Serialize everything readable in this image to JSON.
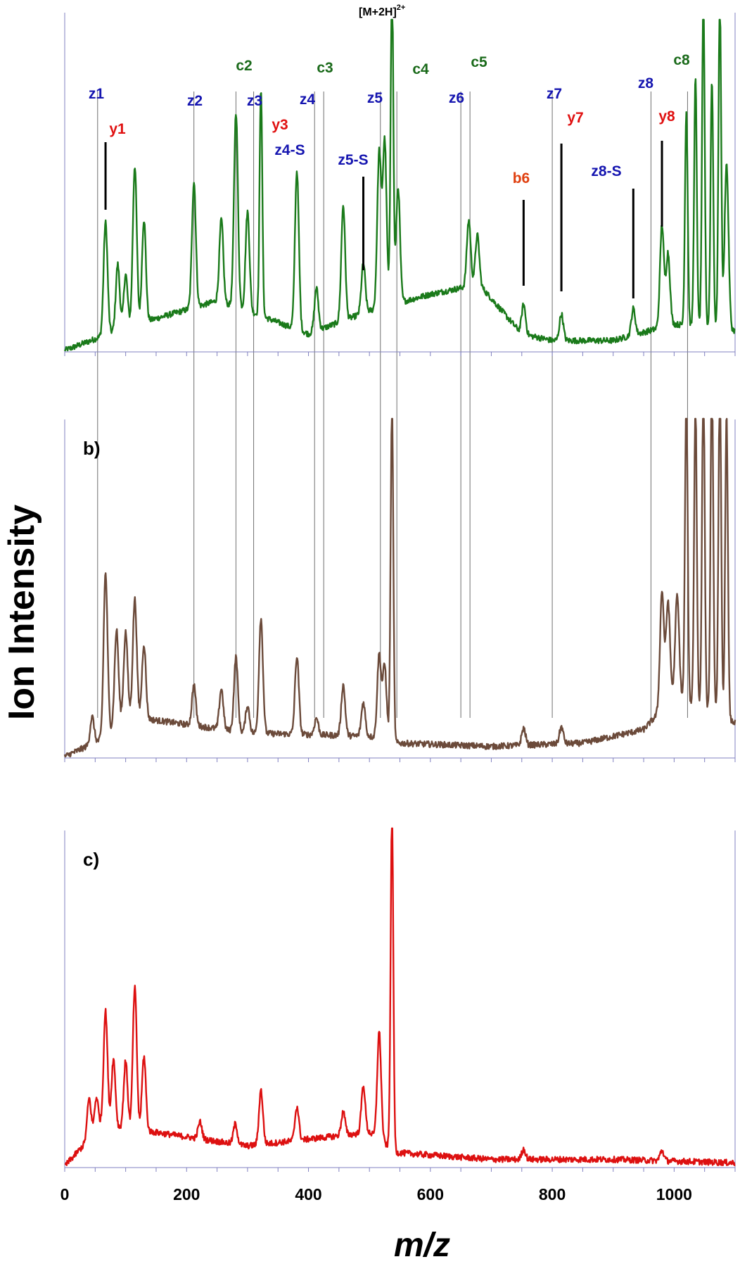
{
  "colors": {
    "panel_a": "#1a7a1a",
    "panel_b": "#6b4a3a",
    "panel_c": "#dd1010",
    "c_ion": "#1a6a1a",
    "z_ion": "#1515b0",
    "y_ion": "#e01010",
    "b_ion": "#e04010",
    "axis": "#8080c0"
  },
  "chart_data": {
    "type": "line",
    "x_axis": {
      "label": "m/z",
      "range": [
        0,
        1100
      ],
      "tick_labels": [
        "0",
        "200",
        "400",
        "600",
        "800",
        "1000"
      ],
      "tick_values": [
        0,
        200,
        400,
        600,
        800,
        1000
      ]
    },
    "y_axis": {
      "label": "Ion Intensity"
    },
    "precursor": {
      "label": "[M+2H]",
      "charge": "2+",
      "mz": 537
    },
    "panels": [
      {
        "id": "a",
        "letter": "",
        "color_key": "panel_a",
        "baseline": [
          [
            0,
            0.0
          ],
          [
            100,
            0.07
          ],
          [
            250,
            0.15
          ],
          [
            300,
            0.12
          ],
          [
            400,
            0.05
          ],
          [
            500,
            0.12
          ],
          [
            600,
            0.17
          ],
          [
            680,
            0.2
          ],
          [
            750,
            0.05
          ],
          [
            800,
            0.03
          ],
          [
            900,
            0.03
          ],
          [
            1000,
            0.08
          ],
          [
            1100,
            0.06
          ]
        ],
        "peaks": [
          [
            67,
            0.34
          ],
          [
            87,
            0.2
          ],
          [
            100,
            0.16
          ],
          [
            115,
            0.48
          ],
          [
            130,
            0.31
          ],
          [
            212,
            0.38
          ],
          [
            257,
            0.25
          ],
          [
            281,
            0.59
          ],
          [
            300,
            0.3
          ],
          [
            322,
            0.69
          ],
          [
            381,
            0.48
          ],
          [
            413,
            0.13
          ],
          [
            457,
            0.35
          ],
          [
            490,
            0.15
          ],
          [
            516,
            0.47
          ],
          [
            525,
            0.5
          ],
          [
            537,
            1.0
          ],
          [
            547,
            0.35
          ],
          [
            663,
            0.2
          ],
          [
            677,
            0.15
          ],
          [
            753,
            0.09
          ],
          [
            815,
            0.08
          ],
          [
            933,
            0.08
          ],
          [
            980,
            0.31
          ],
          [
            990,
            0.22
          ],
          [
            1020,
            0.65
          ],
          [
            1035,
            0.75
          ],
          [
            1048,
            1.0
          ],
          [
            1062,
            0.75
          ],
          [
            1075,
            1.0
          ],
          [
            1086,
            0.5
          ]
        ]
      },
      {
        "id": "b",
        "letter": "b)",
        "color_key": "panel_b",
        "baseline": [
          [
            0,
            0.0
          ],
          [
            60,
            0.05
          ],
          [
            100,
            0.12
          ],
          [
            300,
            0.07
          ],
          [
            500,
            0.06
          ],
          [
            545,
            0.04
          ],
          [
            700,
            0.03
          ],
          [
            850,
            0.04
          ],
          [
            950,
            0.08
          ],
          [
            1000,
            0.18
          ],
          [
            1100,
            0.1
          ]
        ],
        "peaks": [
          [
            45,
            0.08
          ],
          [
            67,
            0.48
          ],
          [
            85,
            0.28
          ],
          [
            100,
            0.25
          ],
          [
            115,
            0.35
          ],
          [
            130,
            0.22
          ],
          [
            212,
            0.12
          ],
          [
            257,
            0.12
          ],
          [
            281,
            0.22
          ],
          [
            300,
            0.08
          ],
          [
            322,
            0.34
          ],
          [
            381,
            0.23
          ],
          [
            413,
            0.05
          ],
          [
            457,
            0.15
          ],
          [
            490,
            0.1
          ],
          [
            516,
            0.25
          ],
          [
            525,
            0.22
          ],
          [
            537,
            1.0
          ],
          [
            753,
            0.05
          ],
          [
            815,
            0.05
          ],
          [
            980,
            0.35
          ],
          [
            990,
            0.3
          ],
          [
            1005,
            0.3
          ],
          [
            1020,
            0.9
          ],
          [
            1035,
            0.9
          ],
          [
            1048,
            1.0
          ],
          [
            1062,
            1.0
          ],
          [
            1075,
            1.0
          ],
          [
            1086,
            0.9
          ]
        ]
      },
      {
        "id": "c",
        "letter": "c)",
        "color_key": "panel_c",
        "baseline": [
          [
            0,
            0.0
          ],
          [
            60,
            0.12
          ],
          [
            150,
            0.1
          ],
          [
            300,
            0.06
          ],
          [
            500,
            0.1
          ],
          [
            545,
            0.04
          ],
          [
            700,
            0.02
          ],
          [
            900,
            0.02
          ],
          [
            1100,
            0.01
          ]
        ],
        "peaks": [
          [
            40,
            0.12
          ],
          [
            52,
            0.1
          ],
          [
            67,
            0.34
          ],
          [
            80,
            0.2
          ],
          [
            100,
            0.2
          ],
          [
            115,
            0.42
          ],
          [
            130,
            0.22
          ],
          [
            222,
            0.05
          ],
          [
            280,
            0.06
          ],
          [
            322,
            0.16
          ],
          [
            381,
            0.1
          ],
          [
            457,
            0.07
          ],
          [
            490,
            0.14
          ],
          [
            516,
            0.32
          ],
          [
            537,
            1.0
          ],
          [
            753,
            0.03
          ],
          [
            980,
            0.03
          ]
        ]
      }
    ],
    "annotations": [
      {
        "label": "z1",
        "mz": 54,
        "type": "z"
      },
      {
        "label": "y1",
        "mz": 67,
        "type": "y"
      },
      {
        "label": "z2",
        "mz": 212,
        "type": "z"
      },
      {
        "label": "c2",
        "mz": 281,
        "type": "c"
      },
      {
        "label": "z3",
        "mz": 310,
        "type": "z"
      },
      {
        "label": "y3",
        "mz": 327,
        "type": "y"
      },
      {
        "label": "z4",
        "mz": 410,
        "type": "z"
      },
      {
        "label": "c3",
        "mz": 425,
        "type": "c"
      },
      {
        "label": "z4-S",
        "mz": 381,
        "type": "z"
      },
      {
        "label": "z5-S",
        "mz": 490,
        "type": "z"
      },
      {
        "label": "z5",
        "mz": 518,
        "type": "z"
      },
      {
        "label": "c4",
        "mz": 545,
        "type": "c"
      },
      {
        "label": "z6",
        "mz": 650,
        "type": "z"
      },
      {
        "label": "c5",
        "mz": 665,
        "type": "c"
      },
      {
        "label": "b6",
        "mz": 753,
        "type": "b"
      },
      {
        "label": "z7",
        "mz": 800,
        "type": "z"
      },
      {
        "label": "y7",
        "mz": 815,
        "type": "y"
      },
      {
        "label": "z8-S",
        "mz": 933,
        "type": "z"
      },
      {
        "label": "z8",
        "mz": 962,
        "type": "z"
      },
      {
        "label": "y8",
        "mz": 980,
        "type": "y"
      },
      {
        "label": "c8",
        "mz": 1022,
        "type": "c"
      }
    ]
  }
}
